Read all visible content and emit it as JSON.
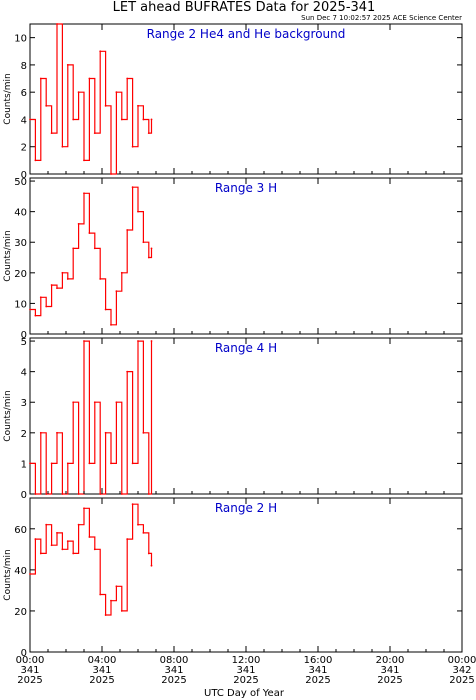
{
  "header": {
    "title": "LET ahead BUFRATES Data for 2025-341",
    "timestamp": "Sun Dec  7 10:02:57 2025 ACE Science Center"
  },
  "xaxis": {
    "label": "UTC Day of Year",
    "ticks": [
      {
        "time": "00:00",
        "day": "341",
        "year": "2025"
      },
      {
        "time": "04:00",
        "day": "341",
        "year": "2025"
      },
      {
        "time": "08:00",
        "day": "341",
        "year": "2025"
      },
      {
        "time": "12:00",
        "day": "341",
        "year": "2025"
      },
      {
        "time": "16:00",
        "day": "341",
        "year": "2025"
      },
      {
        "time": "20:00",
        "day": "341",
        "year": "2025"
      },
      {
        "time": "00:00",
        "day": "342",
        "year": "2025"
      }
    ]
  },
  "colors": {
    "series": "#ff0000",
    "panel_title": "#0000c8",
    "axes": "#000000"
  },
  "chart_data": [
    {
      "type": "line",
      "title": "Range 2 He4 and He background",
      "xlabel": "UTC Day of Year",
      "ylabel": "Counts/min",
      "xlim": [
        0,
        24
      ],
      "ylim": [
        0,
        11
      ],
      "yticks": [
        0,
        2,
        4,
        6,
        8,
        10
      ],
      "grid": false,
      "series": [
        {
          "x": [
            0.0,
            0.3,
            0.6,
            0.9,
            1.2,
            1.5,
            1.8,
            2.1,
            2.4,
            2.7,
            3.0,
            3.3,
            3.6,
            3.9,
            4.2,
            4.5,
            4.8,
            5.1,
            5.4,
            5.7,
            6.0,
            6.3,
            6.6,
            6.75
          ],
          "y": [
            4,
            1,
            7,
            5,
            3,
            11,
            2,
            8,
            4,
            6,
            1,
            7,
            3,
            9,
            5,
            0,
            6,
            4,
            7,
            2,
            5,
            4,
            3,
            4
          ]
        }
      ]
    },
    {
      "type": "line",
      "title": "Range 3 H",
      "xlabel": "UTC Day of Year",
      "ylabel": "Counts/min",
      "xlim": [
        0,
        24
      ],
      "ylim": [
        0,
        51
      ],
      "yticks": [
        0,
        10,
        20,
        30,
        40,
        50
      ],
      "grid": false,
      "series": [
        {
          "x": [
            0.0,
            0.3,
            0.6,
            0.9,
            1.2,
            1.5,
            1.8,
            2.1,
            2.4,
            2.7,
            3.0,
            3.3,
            3.6,
            3.9,
            4.2,
            4.5,
            4.8,
            5.1,
            5.4,
            5.7,
            6.0,
            6.3,
            6.6,
            6.75
          ],
          "y": [
            8,
            6,
            12,
            9,
            16,
            15,
            20,
            18,
            28,
            36,
            46,
            33,
            28,
            18,
            8,
            3,
            14,
            20,
            34,
            48,
            40,
            30,
            25,
            28
          ]
        }
      ]
    },
    {
      "type": "line",
      "title": "Range 4 H",
      "xlabel": "UTC Day of Year",
      "ylabel": "Counts/min",
      "xlim": [
        0,
        24
      ],
      "ylim": [
        0,
        5.1
      ],
      "yticks": [
        0,
        1,
        2,
        3,
        4,
        5
      ],
      "grid": false,
      "series": [
        {
          "x": [
            0.0,
            0.3,
            0.6,
            0.9,
            1.2,
            1.5,
            1.8,
            2.1,
            2.4,
            2.7,
            3.0,
            3.3,
            3.6,
            3.9,
            4.2,
            4.5,
            4.8,
            5.1,
            5.4,
            5.7,
            6.0,
            6.3,
            6.6,
            6.75
          ],
          "y": [
            1,
            0,
            2,
            0,
            1,
            2,
            0,
            1,
            3,
            0,
            5,
            1,
            3,
            0,
            2,
            1,
            3,
            0,
            4,
            1,
            5,
            2,
            0,
            5
          ]
        }
      ]
    },
    {
      "type": "line",
      "title": "Range 2 H",
      "xlabel": "UTC Day of Year",
      "ylabel": "Counts/min",
      "xlim": [
        0,
        24
      ],
      "ylim": [
        0,
        75
      ],
      "yticks": [
        0,
        20,
        40,
        60
      ],
      "grid": false,
      "series": [
        {
          "x": [
            0.0,
            0.3,
            0.6,
            0.9,
            1.2,
            1.5,
            1.8,
            2.1,
            2.4,
            2.7,
            3.0,
            3.3,
            3.6,
            3.9,
            4.2,
            4.5,
            4.8,
            5.1,
            5.4,
            5.7,
            6.0,
            6.3,
            6.6,
            6.75
          ],
          "y": [
            38,
            55,
            48,
            62,
            52,
            58,
            50,
            54,
            48,
            62,
            70,
            56,
            50,
            28,
            18,
            25,
            32,
            20,
            55,
            72,
            62,
            58,
            48,
            42
          ]
        }
      ]
    }
  ]
}
